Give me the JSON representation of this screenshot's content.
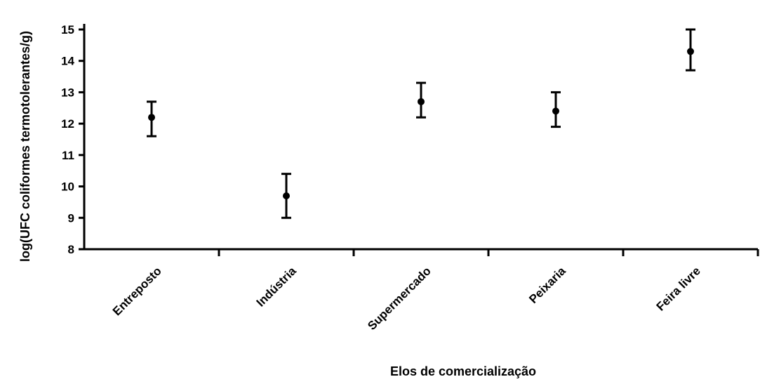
{
  "chart_data": {
    "type": "scatter",
    "title": "",
    "xlabel": "Elos de comercialização",
    "ylabel": "log(UFC coliformes termotolerantes/g)",
    "categories": [
      "Entreposto",
      "Indústria",
      "Supermercado",
      "Peixaria",
      "Feira livre"
    ],
    "series": [
      {
        "values": [
          12.2,
          9.7,
          12.7,
          12.4,
          14.3
        ],
        "error_low": [
          11.6,
          9.0,
          12.2,
          11.9,
          13.7
        ],
        "error_high": [
          12.7,
          10.4,
          13.3,
          13.0,
          15.0
        ]
      }
    ],
    "y_tick_labels": [
      "8",
      "9",
      "10",
      "11",
      "12",
      "13",
      "14",
      "15"
    ],
    "ylim": [
      8,
      15
    ],
    "grid": false
  }
}
